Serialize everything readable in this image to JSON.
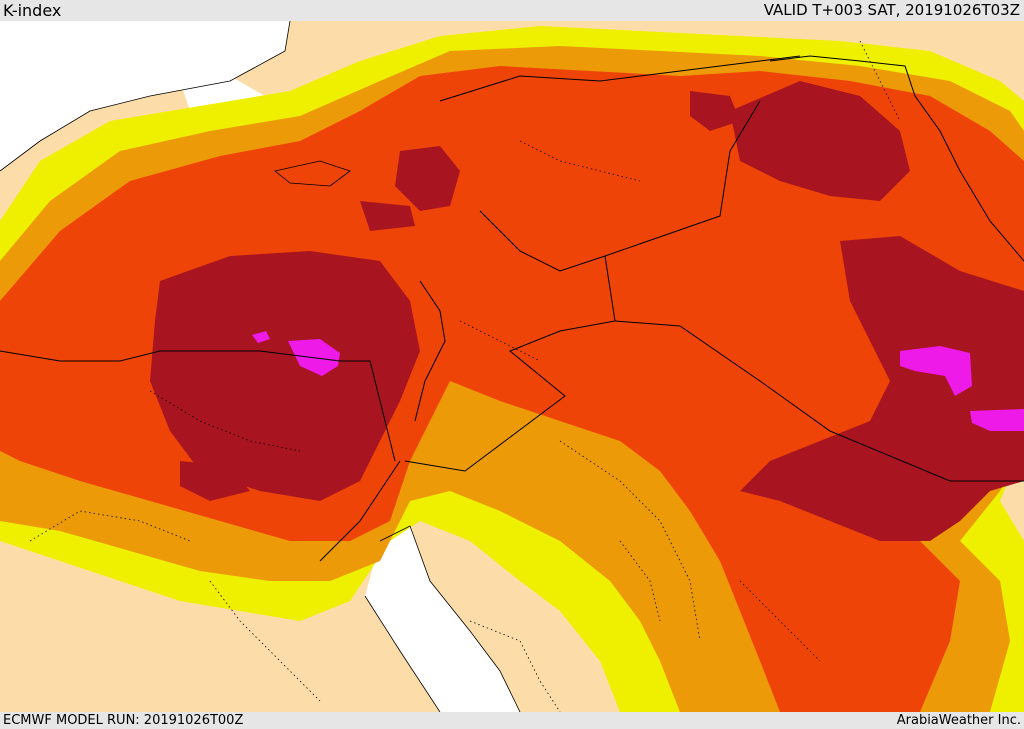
{
  "header": {
    "title": "K-index",
    "valid_time": "VALID T+003 SAT, 20191026T03Z"
  },
  "footer": {
    "model_run": "ECMWF MODEL RUN: 20191026T00Z",
    "credit": "ArabiaWeather Inc."
  },
  "map": {
    "colors": {
      "land": "#fcdda9",
      "sea": "#ffffff",
      "level1": "#eef000",
      "level2": "#ec9a07",
      "level3": "#ef4407",
      "level4": "#a81420",
      "level5": "#ee1ae8",
      "borders": "#000000",
      "bars": "#e6e6e6"
    }
  }
}
